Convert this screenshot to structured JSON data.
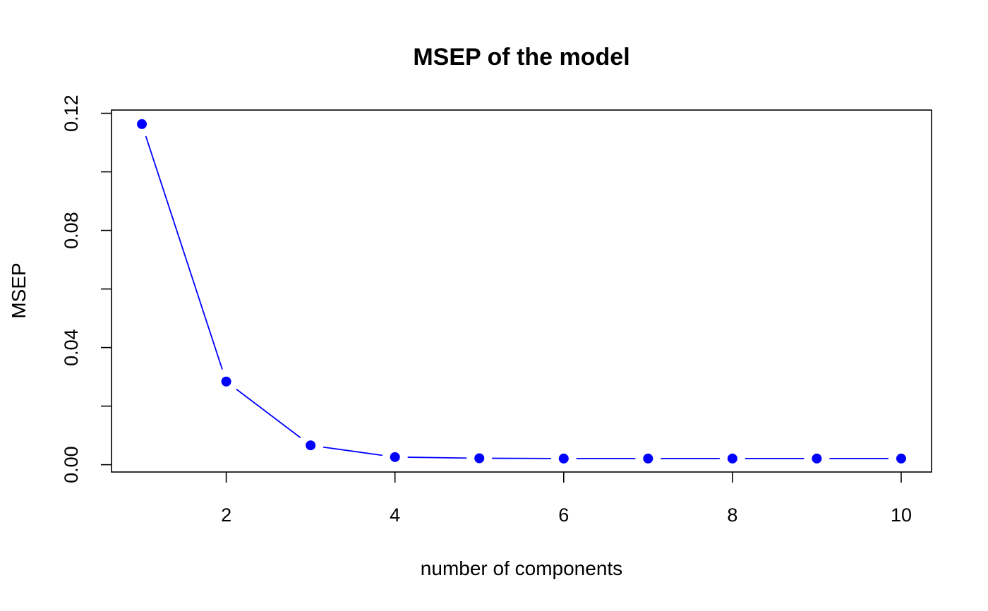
{
  "chart_data": {
    "type": "line",
    "title": "MSEP of the model",
    "xlabel": "number of components",
    "ylabel": "MSEP",
    "x": [
      1,
      2,
      3,
      4,
      5,
      6,
      7,
      8,
      9,
      10
    ],
    "series": [
      {
        "values": [
          0.1163,
          0.0284,
          0.0066,
          0.0026,
          0.0022,
          0.0021,
          0.0021,
          0.0021,
          0.0021,
          0.0021
        ],
        "color": "#0000ff"
      }
    ],
    "xlim": [
      0.64,
      10.36
    ],
    "ylim": [
      -0.0025,
      0.1211
    ],
    "xticks": [
      2,
      4,
      6,
      8,
      10
    ],
    "xtick_labels": [
      "2",
      "4",
      "6",
      "8",
      "10"
    ],
    "yticks": [
      0.0,
      0.02,
      0.04,
      0.06,
      0.08,
      0.1,
      0.12
    ],
    "ytick_labels": [
      "0.00",
      "",
      "0.04",
      "",
      "0.08",
      "",
      "0.12"
    ],
    "grid": false,
    "legend": "none",
    "line_color": "#0000ff",
    "point_color": "#0000ff"
  }
}
